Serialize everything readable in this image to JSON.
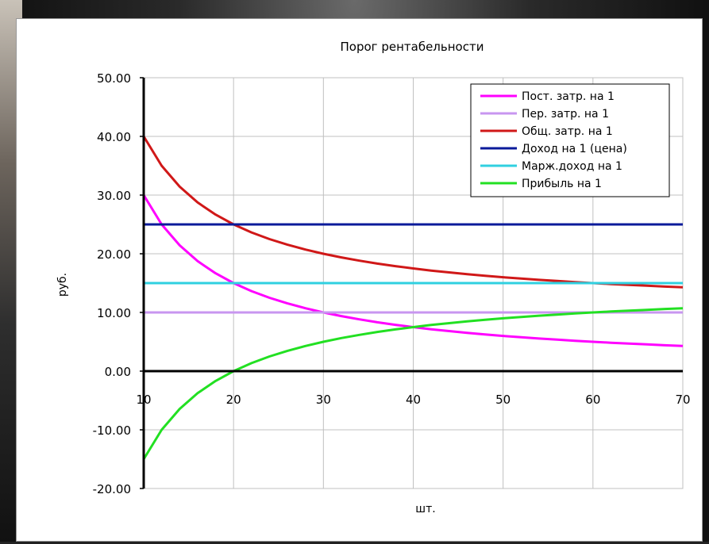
{
  "chart_data": {
    "type": "line",
    "title": "Порог рентабельности",
    "xlabel": "шт.",
    "ylabel": "руб.",
    "xlim": [
      10,
      70
    ],
    "ylim": [
      -20,
      50
    ],
    "x_ticks": [
      "10",
      "20",
      "30",
      "40",
      "50",
      "60",
      "70"
    ],
    "y_ticks": [
      "50.00",
      "40.00",
      "30.00",
      "20.00",
      "10.00",
      "0.00",
      "-10.00",
      "-20.00"
    ],
    "y_tick_values": [
      50,
      40,
      30,
      20,
      10,
      0,
      -10,
      -20
    ],
    "x_tick_values": [
      10,
      20,
      30,
      40,
      50,
      60,
      70
    ],
    "grid": true,
    "legend_position": "top-right",
    "x": [
      10,
      12,
      14,
      16,
      18,
      20,
      22,
      24,
      26,
      28,
      30,
      32,
      34,
      36,
      38,
      40,
      42,
      44,
      46,
      48,
      50,
      52,
      54,
      56,
      58,
      60,
      62,
      64,
      66,
      68,
      70
    ],
    "series": [
      {
        "name": "Пост. затр. на 1",
        "color": "#ff00ff",
        "values": [
          30,
          25,
          21.43,
          18.75,
          16.67,
          15,
          13.64,
          12.5,
          11.54,
          10.71,
          10,
          9.38,
          8.82,
          8.33,
          7.89,
          7.5,
          7.14,
          6.82,
          6.52,
          6.25,
          6,
          5.77,
          5.56,
          5.36,
          5.17,
          5,
          4.84,
          4.69,
          4.55,
          4.41,
          4.29
        ]
      },
      {
        "name": "Пер. затр. на 1",
        "color": "#c896f0",
        "values": [
          10,
          10,
          10,
          10,
          10,
          10,
          10,
          10,
          10,
          10,
          10,
          10,
          10,
          10,
          10,
          10,
          10,
          10,
          10,
          10,
          10,
          10,
          10,
          10,
          10,
          10,
          10,
          10,
          10,
          10,
          10
        ]
      },
      {
        "name": "Общ. затр. на 1",
        "color": "#d01818",
        "values": [
          40,
          35,
          31.43,
          28.75,
          26.67,
          25,
          23.64,
          22.5,
          21.54,
          20.71,
          20,
          19.38,
          18.82,
          18.33,
          17.89,
          17.5,
          17.14,
          16.82,
          16.52,
          16.25,
          16,
          15.77,
          15.56,
          15.36,
          15.17,
          15,
          14.84,
          14.69,
          14.55,
          14.41,
          14.29
        ]
      },
      {
        "name": "Доход  на 1 (цена)",
        "color": "#0a1a9a",
        "values": [
          25,
          25,
          25,
          25,
          25,
          25,
          25,
          25,
          25,
          25,
          25,
          25,
          25,
          25,
          25,
          25,
          25,
          25,
          25,
          25,
          25,
          25,
          25,
          25,
          25,
          25,
          25,
          25,
          25,
          25,
          25
        ]
      },
      {
        "name": "Марж.доход на 1",
        "color": "#30d0e0",
        "values": [
          15,
          15,
          15,
          15,
          15,
          15,
          15,
          15,
          15,
          15,
          15,
          15,
          15,
          15,
          15,
          15,
          15,
          15,
          15,
          15,
          15,
          15,
          15,
          15,
          15,
          15,
          15,
          15,
          15,
          15,
          15
        ]
      },
      {
        "name": "Прибыль на 1",
        "color": "#22e022",
        "values": [
          -15,
          -10,
          -6.43,
          -3.75,
          -1.67,
          0,
          1.36,
          2.5,
          3.46,
          4.29,
          5,
          5.63,
          6.18,
          6.67,
          7.11,
          7.5,
          7.86,
          8.18,
          8.48,
          8.75,
          9,
          9.23,
          9.44,
          9.64,
          9.83,
          10,
          10.16,
          10.31,
          10.45,
          10.59,
          10.71
        ]
      }
    ]
  }
}
